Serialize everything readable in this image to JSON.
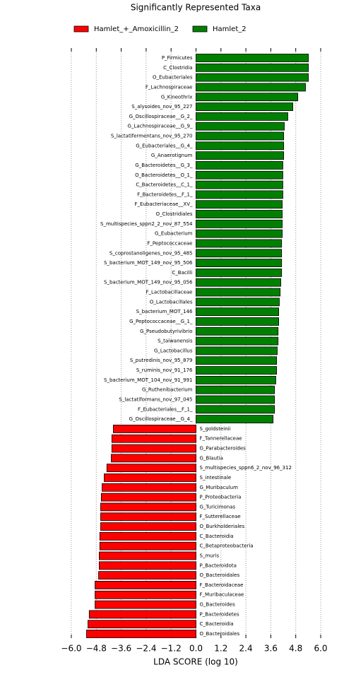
{
  "chart_data": {
    "type": "hbar",
    "title": "Significantly Represented Taxa",
    "x_label": "LDA SCORE (log 10)",
    "categories": [
      "P_Firmicutes",
      "C_Clostridia",
      "O_Eubacteriales",
      "F_Lachnospiraceae",
      "G_Kineothrix",
      "S_alysoides_nov_95_227",
      "G_Oscillospiraceae__G_2_",
      "G_Lachnospiraceae__G_9_",
      "S_lactatifermentans_nov_95_270",
      "G_Eubacteriales__G_4_",
      "G_Anaerotignum",
      "G_Bacteroidetes__G_3_",
      "O_Bacteroidetes__O_1_",
      "C_Bacteroidetes__C_1_",
      "F_Bacteroidetes__F_1_",
      "F_Eubacteriaceae__XV_",
      "O_Clostridiales",
      "S_multispecies_sppn2_2_nov_87_554",
      "G_Eubacterium",
      "F_Peptococcaceae",
      "S_coprostanoligenes_nov_95_485",
      "S_bacterium_MOT_149_nov_95_506",
      "C_Bacilli",
      "S_bacterium_MOT_149_nov_95_056",
      "F_Lactobacillaceae",
      "O_Lactobacillales",
      "S_bacterium_MOT_146",
      "G_Peptococcaceae__G_1_",
      "G_Pseudobutyrivibrio",
      "S_taiwanensis",
      "G_Lactobacillus",
      "S_putredinis_nov_95_879",
      "S_ruminis_nov_91_176",
      "S_bacterium_MOT_104_nov_91_991",
      "G_Ruthenibacterium",
      "S_lactatiformans_nov_97_045",
      "F_Eubacteriales__F_1_",
      "G_Oscillospiraceae__G_4_",
      "S_goldsteinii",
      "F_Tannerellaceae",
      "G_Parabacteroides",
      "G_Blautia",
      "S_multispecies_sppn6_2_nov_96_312",
      "S_intestinale",
      "G_Muribaculum",
      "P_Proteobacteria",
      "G_Turicimonas",
      "F_Sutterellaceae",
      "O_Burkholderiales",
      "C_Bacteroidia",
      "C_Betaproteobacteria",
      "S_muris",
      "P_Bacteroidota",
      "O_Bacteroidales",
      "F_Bacteroidaceae",
      "F_Muribaculaceae",
      "G_Bacteroides",
      "P_Bacteroidetes",
      "C_Bacteroidia",
      "O_Bacteroidales"
    ],
    "series": [
      {
        "name": "Hamlet_+_Amoxicillin_2",
        "color": "#ff0000",
        "values": [
          null,
          null,
          null,
          null,
          null,
          null,
          null,
          null,
          null,
          null,
          null,
          null,
          null,
          null,
          null,
          null,
          null,
          null,
          null,
          null,
          null,
          null,
          null,
          null,
          null,
          null,
          null,
          null,
          null,
          null,
          null,
          null,
          null,
          null,
          null,
          null,
          null,
          null,
          -3.98,
          -4.05,
          -4.05,
          -4.08,
          -4.29,
          -4.42,
          -4.52,
          -4.56,
          -4.59,
          -4.59,
          -4.59,
          -4.63,
          -4.63,
          -4.66,
          -4.66,
          -4.69,
          -4.86,
          -4.86,
          -4.86,
          -5.14,
          -5.2,
          -5.27
        ]
      },
      {
        "name": "Hamlet_2",
        "color": "#008000",
        "values": [
          5.41,
          5.41,
          5.41,
          5.27,
          4.9,
          4.66,
          4.42,
          4.25,
          4.22,
          4.22,
          4.22,
          4.18,
          4.18,
          4.18,
          4.18,
          4.15,
          4.15,
          4.15,
          4.15,
          4.12,
          4.12,
          4.12,
          4.12,
          4.08,
          4.05,
          4.01,
          3.98,
          3.98,
          3.95,
          3.95,
          3.91,
          3.88,
          3.88,
          3.84,
          3.78,
          3.78,
          3.78,
          3.71,
          null,
          null,
          null,
          null,
          null,
          null,
          null,
          null,
          null,
          null,
          null,
          null,
          null,
          null,
          null,
          null,
          null,
          null,
          null,
          null,
          null,
          null
        ]
      }
    ],
    "xlim": [
      -6,
      6
    ],
    "xticks": [
      {
        "value": -6,
        "label": "−6.0"
      },
      {
        "value": -4.8,
        "label": "−4.8"
      },
      {
        "value": -3.6,
        "label": "−3.6"
      },
      {
        "value": -2.4,
        "label": "−2.4"
      },
      {
        "value": -1.2,
        "label": "−1.2"
      },
      {
        "value": 0,
        "label": "0.0"
      },
      1.2,
      2.4,
      3.6,
      4.8,
      {
        "value": 6,
        "label": "6.0"
      }
    ],
    "grid": true,
    "legend": "top"
  }
}
